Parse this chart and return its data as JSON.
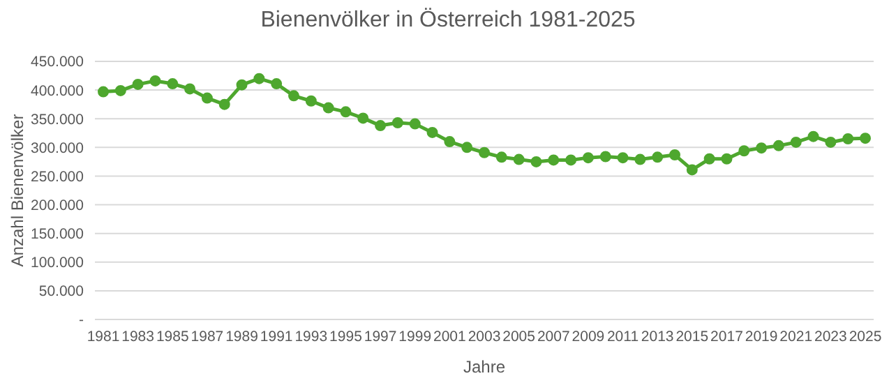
{
  "chart_data": {
    "type": "line",
    "title": "Bienenvölker in Österreich 1981-2025",
    "xlabel": "Jahre",
    "ylabel": "Anzahl Bienenvölker",
    "categories": [
      "1981",
      null,
      "1983",
      null,
      "1985",
      null,
      "1987",
      null,
      "1989",
      null,
      "1991",
      null,
      "1993",
      null,
      "1995",
      null,
      "1997",
      null,
      "1999",
      null,
      "2001",
      null,
      "2003",
      null,
      "2005",
      null,
      "2007",
      null,
      "2009",
      null,
      "2011",
      null,
      "2013",
      null,
      "2015",
      null,
      "2017",
      null,
      "2019",
      null,
      "2021",
      null,
      "2023",
      null,
      "2025"
    ],
    "series": [
      {
        "color": "#4ea72e",
        "values": [
          397000,
          399000,
          410000,
          416000,
          411000,
          402000,
          386000,
          375000,
          409000,
          420000,
          411000,
          390000,
          381000,
          369000,
          362000,
          351000,
          338000,
          343000,
          341000,
          326000,
          310000,
          300000,
          291000,
          283000,
          279000,
          275000,
          278000,
          278000,
          282000,
          284000,
          282000,
          279000,
          283000,
          287000,
          261000,
          280000,
          280000,
          294000,
          299000,
          303000,
          309000,
          319000,
          309000,
          315000,
          316000
        ]
      }
    ],
    "ylim": [
      0,
      450000
    ],
    "yticks": [
      {
        "value": 0,
        "label": "-"
      },
      {
        "value": 50000,
        "label": "50.000"
      },
      {
        "value": 100000,
        "label": "100.000"
      },
      {
        "value": 150000,
        "label": "150.000"
      },
      {
        "value": 200000,
        "label": "200.000"
      },
      {
        "value": 250000,
        "label": "250.000"
      },
      {
        "value": 300000,
        "label": "300.000"
      },
      {
        "value": 350000,
        "label": "350.000"
      },
      {
        "value": 400000,
        "label": "400.000"
      },
      {
        "value": 450000,
        "label": "450.000"
      }
    ],
    "grid": "y",
    "legend": false,
    "marker": "circle",
    "line_style": "solid"
  }
}
